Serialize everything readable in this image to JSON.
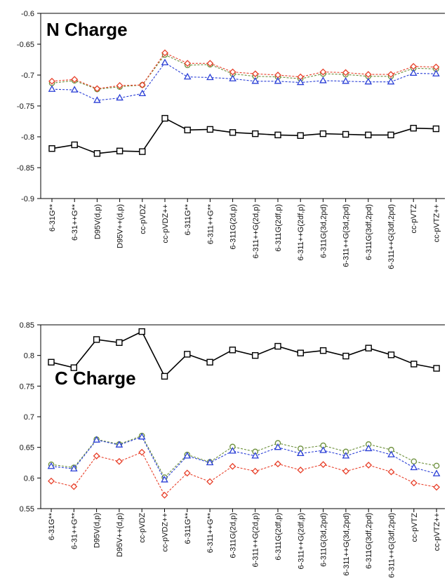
{
  "chart_data": [
    {
      "type": "line",
      "title": "N Charge",
      "xlabel": "",
      "ylabel": "",
      "ylim": [
        -0.9,
        -0.6
      ],
      "yticks": [
        "-0.6",
        "-0.65",
        "-0.7",
        "-0.75",
        "-0.8",
        "-0.85",
        "-0.9"
      ],
      "grid": false,
      "categories": [
        "6-31G**",
        "6-31++G**",
        "D95V(d,p)",
        "D95V++(d,p)",
        "cc-pVDZ",
        "cc-pVDZ++",
        "6-311G**",
        "6-311++G**",
        "6-311G(2d,p)",
        "6-311++G(2d,p)",
        "6-311G(2df,p)",
        "6-311++G(2df,p)",
        "6-311G(3d,2pd)",
        "6-311++G(3d,2pd)",
        "6-311G(3df,2pd)",
        "6-311++G(3df,2pd)",
        "cc-pVTZ",
        "cc-pVTZ++"
      ],
      "series": [
        {
          "marker": "square",
          "color": "#000000",
          "dash": false,
          "values": [
            -0.819,
            -0.813,
            -0.827,
            -0.823,
            -0.824,
            -0.77,
            -0.789,
            -0.788,
            -0.793,
            -0.795,
            -0.797,
            -0.798,
            -0.795,
            -0.796,
            -0.797,
            -0.797,
            -0.786,
            -0.787
          ]
        },
        {
          "marker": "circle",
          "color": "#6b8f3a",
          "dash": true,
          "values": [
            -0.713,
            -0.709,
            -0.723,
            -0.719,
            -0.716,
            -0.667,
            -0.684,
            -0.683,
            -0.698,
            -0.702,
            -0.703,
            -0.706,
            -0.698,
            -0.699,
            -0.702,
            -0.702,
            -0.689,
            -0.69
          ]
        },
        {
          "marker": "diamond",
          "color": "#e8402a",
          "dash": true,
          "values": [
            -0.71,
            -0.707,
            -0.722,
            -0.717,
            -0.716,
            -0.664,
            -0.681,
            -0.681,
            -0.695,
            -0.698,
            -0.7,
            -0.703,
            -0.695,
            -0.696,
            -0.699,
            -0.699,
            -0.686,
            -0.687
          ]
        },
        {
          "marker": "triangle",
          "color": "#2a3fd6",
          "dash": true,
          "values": [
            -0.723,
            -0.724,
            -0.741,
            -0.737,
            -0.73,
            -0.68,
            -0.703,
            -0.704,
            -0.706,
            -0.71,
            -0.71,
            -0.712,
            -0.709,
            -0.71,
            -0.711,
            -0.711,
            -0.697,
            -0.698
          ]
        }
      ]
    },
    {
      "type": "line",
      "title": "C Charge",
      "xlabel": "",
      "ylabel": "",
      "ylim": [
        0.55,
        0.85
      ],
      "yticks": [
        "0.85",
        "0.8",
        "0.75",
        "0.7",
        "0.65",
        "0.6",
        "0.55"
      ],
      "grid": false,
      "categories": [
        "6-31G**",
        "6-31++G**",
        "D95V(d,p)",
        "D95V++(d,p)",
        "cc-pVDZ",
        "cc-pVDZ++",
        "6-311G**",
        "6-311++G**",
        "6-311G(2d,p)",
        "6-311++G(2d,p)",
        "6-311G(2df,p)",
        "6-311++G(2df,p)",
        "6-311G(3d,2pd)",
        "6-311++G(3d,2pd)",
        "6-311G(3df,2pd)",
        "6-311++G(3df,2pd)",
        "cc-pVTZ",
        "cc-pVTZ++"
      ],
      "series": [
        {
          "marker": "square",
          "color": "#000000",
          "dash": false,
          "values": [
            0.789,
            0.78,
            0.826,
            0.821,
            0.839,
            0.766,
            0.802,
            0.789,
            0.809,
            0.8,
            0.815,
            0.804,
            0.808,
            0.799,
            0.812,
            0.801,
            0.786,
            0.779
          ]
        },
        {
          "marker": "circle",
          "color": "#6b8f3a",
          "dash": true,
          "values": [
            0.622,
            0.617,
            0.663,
            0.655,
            0.669,
            0.601,
            0.638,
            0.626,
            0.651,
            0.643,
            0.657,
            0.648,
            0.653,
            0.643,
            0.655,
            0.646,
            0.627,
            0.62
          ]
        },
        {
          "marker": "triangle",
          "color": "#2a3fd6",
          "dash": true,
          "values": [
            0.619,
            0.615,
            0.662,
            0.654,
            0.667,
            0.597,
            0.636,
            0.625,
            0.644,
            0.636,
            0.65,
            0.64,
            0.645,
            0.636,
            0.648,
            0.638,
            0.617,
            0.607
          ]
        },
        {
          "marker": "diamond",
          "color": "#e8402a",
          "dash": true,
          "values": [
            0.595,
            0.586,
            0.636,
            0.627,
            0.642,
            0.572,
            0.608,
            0.594,
            0.619,
            0.611,
            0.623,
            0.613,
            0.622,
            0.611,
            0.621,
            0.61,
            0.592,
            0.585
          ]
        }
      ]
    }
  ]
}
